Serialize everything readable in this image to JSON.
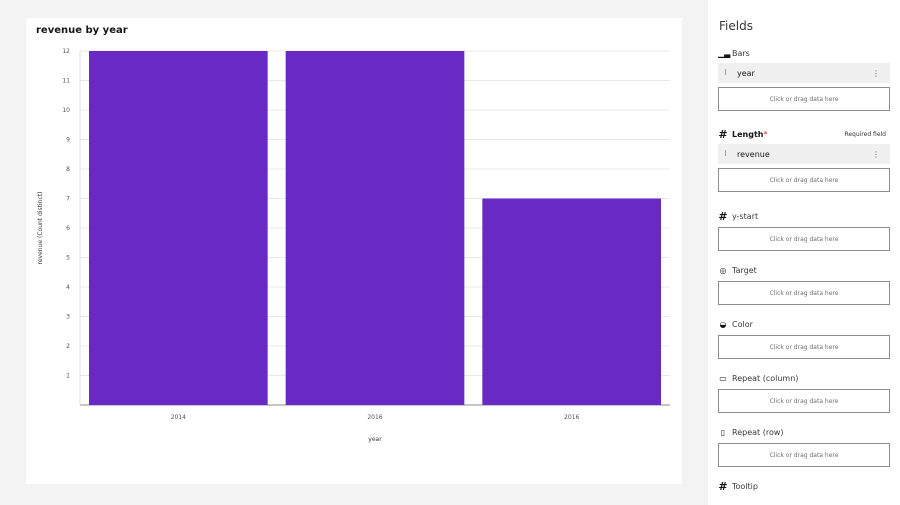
{
  "chart": {
    "title": "revenue by year",
    "bar_color": "#6929c4"
  },
  "chart_data": {
    "type": "bar",
    "title": "revenue by year",
    "categories": [
      "2014",
      "2016",
      "2016"
    ],
    "values": [
      12,
      12,
      7
    ],
    "xlabel": "year",
    "ylabel": "revenue (Count distinct)",
    "ylim": [
      0,
      12
    ],
    "yticks": [
      1,
      2,
      3,
      4,
      5,
      6,
      7,
      8,
      9,
      10,
      11,
      12
    ],
    "grid": true
  },
  "panel": {
    "title": "Fields",
    "drop_text": "Click or drag data here",
    "bars": {
      "label": "Bars",
      "icon": "bar-chart-icon",
      "chip": "year"
    },
    "length": {
      "label": "Length",
      "required_mark": "*",
      "required_note": "Required field",
      "icon": "hash-icon",
      "chip": "revenue"
    },
    "ystart": {
      "label": "y-start",
      "icon": "hash-icon"
    },
    "target": {
      "label": "Target",
      "icon": "target-icon"
    },
    "color": {
      "label": "Color",
      "icon": "palette-icon"
    },
    "repeat_col": {
      "label": "Repeat (column)",
      "icon": "column-icon"
    },
    "repeat_row": {
      "label": "Repeat (row)",
      "icon": "row-icon"
    },
    "tooltip": {
      "label": "Tooltip",
      "icon": "hash-icon"
    }
  }
}
